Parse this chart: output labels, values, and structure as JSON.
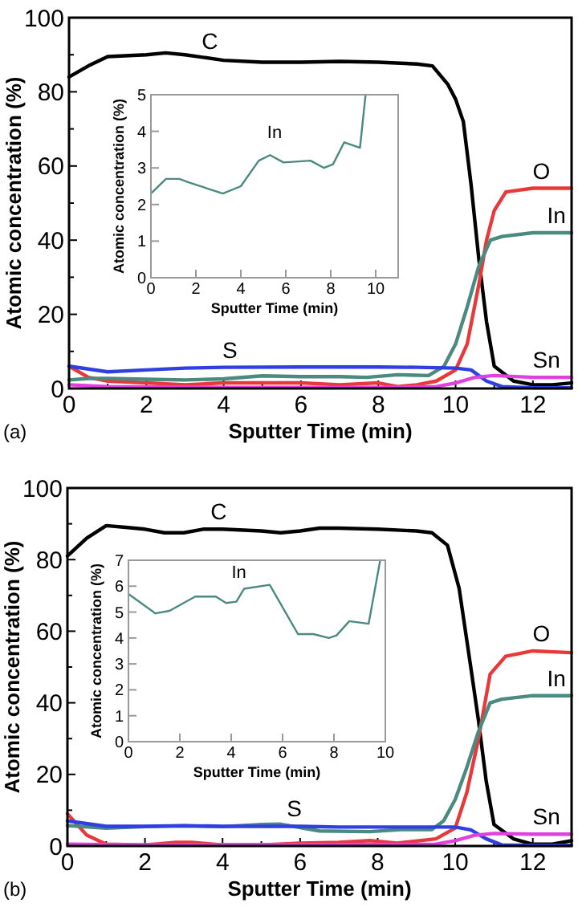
{
  "chart_data": [
    {
      "type": "line",
      "xlabel": "Sputter Time (min)",
      "ylabel": "Atomic concentration (%)",
      "annotations": [
        "(a)"
      ],
      "xlim": [
        0,
        13
      ],
      "ylim": [
        0,
        100
      ],
      "xticks": [
        0,
        {
          "value": 1,
          "label": null
        },
        2,
        {
          "value": 3,
          "label": null
        },
        4,
        {
          "value": 5,
          "label": null
        },
        6,
        {
          "value": 7,
          "label": null
        },
        8,
        {
          "value": 9,
          "label": null
        },
        10,
        {
          "value": 11,
          "label": null
        },
        12
      ],
      "yticks": [
        0,
        {
          "value": 10,
          "label": null
        },
        20,
        {
          "value": 30,
          "label": null
        },
        40,
        {
          "value": 50,
          "label": null
        },
        60,
        {
          "value": 70,
          "label": null
        },
        80,
        {
          "value": 90,
          "label": null
        },
        100
      ],
      "series": [
        {
          "name": "C",
          "color": "#000000",
          "x": [
            0,
            0.5,
            1,
            2,
            2.5,
            3,
            4,
            5,
            6,
            7,
            8,
            9,
            9.4,
            9.8,
            10,
            10.2,
            10.4,
            10.6,
            10.8,
            11,
            11.5,
            12,
            12.5,
            13
          ],
          "values": [
            84,
            87,
            89.5,
            90,
            90.5,
            90,
            88.5,
            88,
            88,
            88.2,
            88,
            87.5,
            87,
            82,
            78,
            72,
            55,
            35,
            18,
            6,
            2,
            1,
            1,
            1.5
          ]
        },
        {
          "name": "O",
          "color": "#e8393a",
          "x": [
            0,
            0.5,
            1,
            2,
            3,
            4,
            5,
            6,
            7,
            8,
            8.5,
            9,
            9.5,
            10,
            10.3,
            10.6,
            10.8,
            11,
            11.3,
            12,
            13
          ],
          "values": [
            6,
            3,
            2,
            1.5,
            1,
            1.5,
            1.5,
            1.5,
            1,
            1.5,
            0.5,
            1,
            2,
            5,
            12,
            28,
            40,
            48,
            53,
            54,
            54
          ]
        },
        {
          "name": "In",
          "color": "#4a8a80",
          "x": [
            0,
            0.5,
            1,
            2,
            3,
            4,
            5,
            6,
            7,
            7.7,
            8.5,
            9.3,
            9.7,
            10,
            10.3,
            10.6,
            10.9,
            11.2,
            12,
            13
          ],
          "values": [
            2.3,
            2.7,
            2.7,
            2.5,
            2.3,
            2.6,
            3.4,
            3.2,
            3.2,
            3,
            3.7,
            3.5,
            6,
            12,
            22,
            33,
            40,
            41,
            42,
            42
          ]
        },
        {
          "name": "S",
          "color": "#3040e0",
          "x": [
            0,
            1,
            2,
            3,
            4,
            6,
            8,
            9,
            10,
            10.4,
            10.8,
            11.2,
            12,
            13
          ],
          "values": [
            6,
            4.5,
            5,
            5.5,
            5.7,
            5.8,
            5.8,
            5.7,
            5.5,
            5,
            2,
            0.5,
            0.2,
            0.2
          ]
        },
        {
          "name": "Sn",
          "color": "#e040e0",
          "x": [
            0,
            1,
            4,
            8,
            9.5,
            10,
            10.5,
            11,
            12,
            13
          ],
          "values": [
            1,
            0.5,
            0.3,
            0.3,
            0.5,
            1.5,
            3,
            3.5,
            3,
            3
          ]
        }
      ]
    },
    {
      "type": "line",
      "xlabel": "Sputter Time (min)",
      "ylabel": "Atomic concentration (%)",
      "xlim": [
        0,
        11
      ],
      "ylim": [
        0,
        5
      ],
      "xticks": [
        0,
        2,
        4,
        6,
        8,
        10
      ],
      "yticks": [
        0,
        1,
        2,
        3,
        4,
        5
      ],
      "series": [
        {
          "name": "In",
          "color": "#4a8a80",
          "x": [
            0,
            0.67,
            1.26,
            1.7,
            3.2,
            4,
            4.8,
            5.3,
            5.9,
            7.1,
            7.7,
            8.1,
            8.6,
            9.3,
            9.55
          ],
          "values": [
            2.3,
            2.7,
            2.7,
            2.6,
            2.3,
            2.5,
            3.2,
            3.35,
            3.15,
            3.2,
            3,
            3.1,
            3.7,
            3.55,
            5
          ]
        }
      ]
    },
    {
      "type": "line",
      "xlabel": "Sputter Time (min)",
      "ylabel": "Atomic concentration (%)",
      "annotations": [
        "(b)"
      ],
      "xlim": [
        0,
        13
      ],
      "ylim": [
        0,
        100
      ],
      "xticks": [
        0,
        {
          "value": 1,
          "label": null
        },
        2,
        {
          "value": 3,
          "label": null
        },
        4,
        {
          "value": 5,
          "label": null
        },
        6,
        {
          "value": 7,
          "label": null
        },
        8,
        {
          "value": 9,
          "label": null
        },
        10,
        {
          "value": 11,
          "label": null
        },
        12
      ],
      "yticks": [
        0,
        {
          "value": 10,
          "label": null
        },
        20,
        {
          "value": 30,
          "label": null
        },
        40,
        {
          "value": 50,
          "label": null
        },
        60,
        {
          "value": 70,
          "label": null
        },
        80,
        {
          "value": 90,
          "label": null
        },
        100
      ],
      "series": [
        {
          "name": "C",
          "color": "#000000",
          "x": [
            0,
            0.5,
            1,
            1.5,
            2,
            2.5,
            3,
            3.5,
            4,
            5,
            5.5,
            6,
            6.5,
            7,
            8,
            9,
            9.4,
            9.8,
            10.1,
            10.4,
            10.6,
            10.8,
            11,
            11.5,
            12,
            12.5,
            13
          ],
          "values": [
            81,
            86,
            89.5,
            89,
            88.5,
            87.5,
            87.5,
            88.5,
            88.5,
            88,
            87.5,
            88,
            88.8,
            88.8,
            88.5,
            88,
            87.5,
            84,
            72,
            50,
            35,
            18,
            6,
            2,
            0.5,
            0.5,
            1.5
          ]
        },
        {
          "name": "O",
          "color": "#e8393a",
          "x": [
            0,
            0.5,
            1,
            2,
            2.8,
            3.2,
            4,
            5,
            6,
            7,
            7.8,
            8.5,
            9.5,
            10,
            10.3,
            10.6,
            10.9,
            11.3,
            12,
            13
          ],
          "values": [
            9,
            3,
            0.5,
            0.3,
            1,
            1,
            0.3,
            0.3,
            0.8,
            1,
            1.5,
            0.8,
            2,
            5,
            15,
            30,
            48,
            53,
            54.5,
            54
          ]
        },
        {
          "name": "In",
          "color": "#4a8a80",
          "x": [
            0,
            1,
            2,
            3,
            4,
            5,
            5.5,
            6.5,
            7.8,
            8.6,
            9.4,
            9.7,
            10,
            10.3,
            10.6,
            10.9,
            11.2,
            12,
            13
          ],
          "values": [
            5.7,
            5,
            5.4,
            5.6,
            5.4,
            6,
            6.1,
            4.2,
            4,
            4.6,
            4.6,
            7,
            13,
            22,
            32,
            40,
            41,
            42,
            42
          ]
        },
        {
          "name": "S",
          "color": "#3040e0",
          "x": [
            0,
            1,
            2,
            3,
            4,
            5,
            6,
            7,
            8,
            9,
            10,
            10.4,
            10.8,
            11.2,
            12,
            13
          ],
          "values": [
            7,
            5.5,
            5.5,
            5.7,
            5.5,
            5.5,
            5.5,
            5.3,
            5.3,
            5.3,
            5.3,
            4.5,
            2,
            0.3,
            0.2,
            0.2
          ]
        },
        {
          "name": "Sn",
          "color": "#e040e0",
          "x": [
            0,
            2,
            9.5,
            10,
            10.5,
            11,
            12,
            13
          ],
          "values": [
            0.5,
            0.3,
            0.5,
            1.5,
            3,
            3.5,
            3.3,
            3.3
          ]
        }
      ]
    },
    {
      "type": "line",
      "xlabel": "Sputter Time (min)",
      "ylabel": "Atomic concentration (%)",
      "xlim": [
        0,
        10
      ],
      "ylim": [
        0,
        7
      ],
      "xticks": [
        0,
        2,
        4,
        6,
        8,
        10
      ],
      "yticks": [
        0,
        1,
        2,
        3,
        4,
        5,
        6,
        7
      ],
      "series": [
        {
          "name": "In",
          "color": "#4a8a80",
          "x": [
            0,
            1.05,
            1.6,
            2.6,
            3.4,
            3.8,
            4.2,
            4.5,
            5.5,
            6.6,
            7.2,
            7.8,
            8.1,
            8.6,
            9.35,
            9.8
          ],
          "values": [
            5.7,
            4.95,
            5.05,
            5.6,
            5.6,
            5.35,
            5.4,
            5.9,
            6.05,
            4.15,
            4.15,
            4,
            4.1,
            4.65,
            4.55,
            7
          ]
        }
      ]
    }
  ]
}
